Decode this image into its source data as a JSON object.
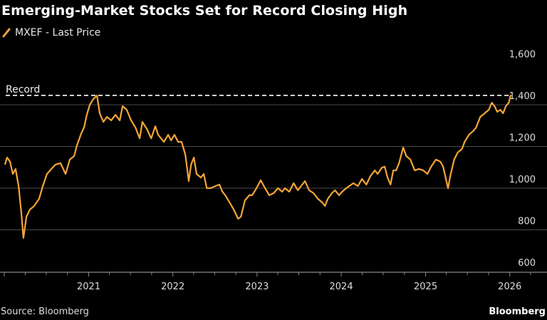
{
  "title": "Emerging-Market Stocks Set for Record Closing High",
  "source": "Source: Bloomberg",
  "brand": "Bloomberg",
  "colors": {
    "series": "#f6a539",
    "background": "#000000",
    "grid": "#4a4a4a",
    "record_line": "#ffffff"
  },
  "chart_data": {
    "type": "line",
    "title": "Emerging-Market Stocks Set for Record Closing High",
    "legend": {
      "placement": "top-left",
      "entries": [
        "MXEF - Last Price"
      ]
    },
    "grid": true,
    "y_axis": {
      "position": "right",
      "ylim": [
        600,
        1600
      ],
      "ticks": [
        600,
        800,
        1000,
        1200,
        1400,
        1600
      ],
      "tick_labels": [
        "600",
        "800",
        "1,000",
        "1,200",
        "1,400",
        "1,600"
      ]
    },
    "x_axis": {
      "xlim": [
        "2020-01-01",
        "2026-01-08"
      ],
      "ticks": [
        "2021-01-01",
        "2022-01-01",
        "2023-01-01",
        "2024-01-01",
        "2025-01-01",
        "2026-01-01"
      ],
      "tick_labels": [
        "2021",
        "2022",
        "2023",
        "2024",
        "2025",
        "2026"
      ]
    },
    "annotations": [
      {
        "type": "hline",
        "label": "Record",
        "value": 1445,
        "style": "dashed"
      }
    ],
    "series": [
      {
        "name": "MXEF - Last Price",
        "points": [
          [
            "2020-01-04",
            1113
          ],
          [
            "2020-01-13",
            1147
          ],
          [
            "2020-01-26",
            1127
          ],
          [
            "2020-02-07",
            1068
          ],
          [
            "2020-02-19",
            1092
          ],
          [
            "2020-03-03",
            1010
          ],
          [
            "2020-03-15",
            880
          ],
          [
            "2020-03-24",
            761
          ],
          [
            "2020-04-06",
            863
          ],
          [
            "2020-04-21",
            897
          ],
          [
            "2020-05-10",
            915
          ],
          [
            "2020-05-31",
            949
          ],
          [
            "2020-06-16",
            1010
          ],
          [
            "2020-07-04",
            1068
          ],
          [
            "2020-07-23",
            1092
          ],
          [
            "2020-08-10",
            1113
          ],
          [
            "2020-09-01",
            1120
          ],
          [
            "2020-09-23",
            1068
          ],
          [
            "2020-10-11",
            1137
          ],
          [
            "2020-10-30",
            1154
          ],
          [
            "2020-11-11",
            1205
          ],
          [
            "2020-11-30",
            1263
          ],
          [
            "2020-12-12",
            1291
          ],
          [
            "2020-12-24",
            1352
          ],
          [
            "2021-01-06",
            1400
          ],
          [
            "2021-01-21",
            1427
          ],
          [
            "2021-02-06",
            1444
          ],
          [
            "2021-02-18",
            1359
          ],
          [
            "2021-03-06",
            1318
          ],
          [
            "2021-03-21",
            1342
          ],
          [
            "2021-04-09",
            1325
          ],
          [
            "2021-04-27",
            1352
          ],
          [
            "2021-05-16",
            1325
          ],
          [
            "2021-05-28",
            1393
          ],
          [
            "2021-06-15",
            1376
          ],
          [
            "2021-07-04",
            1325
          ],
          [
            "2021-07-23",
            1291
          ],
          [
            "2021-08-10",
            1239
          ],
          [
            "2021-08-22",
            1318
          ],
          [
            "2021-09-10",
            1284
          ],
          [
            "2021-09-29",
            1239
          ],
          [
            "2021-10-17",
            1297
          ],
          [
            "2021-10-29",
            1256
          ],
          [
            "2021-11-23",
            1222
          ],
          [
            "2021-12-12",
            1256
          ],
          [
            "2021-12-24",
            1229
          ],
          [
            "2022-01-08",
            1256
          ],
          [
            "2022-01-24",
            1222
          ],
          [
            "2022-02-08",
            1222
          ],
          [
            "2022-02-24",
            1161
          ],
          [
            "2022-03-11",
            1034
          ],
          [
            "2022-03-21",
            1113
          ],
          [
            "2022-04-02",
            1147
          ],
          [
            "2022-04-14",
            1068
          ],
          [
            "2022-05-03",
            1051
          ],
          [
            "2022-05-15",
            1068
          ],
          [
            "2022-05-28",
            1000
          ],
          [
            "2022-06-15",
            1000
          ],
          [
            "2022-07-04",
            1010
          ],
          [
            "2022-07-22",
            1017
          ],
          [
            "2022-08-04",
            983
          ],
          [
            "2022-08-16",
            966
          ],
          [
            "2022-09-04",
            932
          ],
          [
            "2022-09-22",
            897
          ],
          [
            "2022-10-11",
            853
          ],
          [
            "2022-10-23",
            863
          ],
          [
            "2022-11-10",
            942
          ],
          [
            "2022-11-29",
            966
          ],
          [
            "2022-12-11",
            966
          ],
          [
            "2022-12-30",
            1000
          ],
          [
            "2023-01-17",
            1038
          ],
          [
            "2023-02-05",
            1000
          ],
          [
            "2023-02-23",
            966
          ],
          [
            "2023-03-14",
            976
          ],
          [
            "2023-04-02",
            1000
          ],
          [
            "2023-04-20",
            983
          ],
          [
            "2023-05-02",
            1000
          ],
          [
            "2023-05-21",
            983
          ],
          [
            "2023-06-09",
            1024
          ],
          [
            "2023-06-27",
            990
          ],
          [
            "2023-07-16",
            1017
          ],
          [
            "2023-07-28",
            1034
          ],
          [
            "2023-08-15",
            990
          ],
          [
            "2023-09-03",
            976
          ],
          [
            "2023-09-22",
            949
          ],
          [
            "2023-10-10",
            932
          ],
          [
            "2023-10-23",
            915
          ],
          [
            "2023-11-04",
            949
          ],
          [
            "2023-11-22",
            976
          ],
          [
            "2023-12-05",
            990
          ],
          [
            "2023-12-23",
            966
          ],
          [
            "2024-01-05",
            983
          ],
          [
            "2024-01-23",
            1000
          ],
          [
            "2024-02-05",
            1010
          ],
          [
            "2024-02-23",
            1024
          ],
          [
            "2024-03-13",
            1010
          ],
          [
            "2024-03-31",
            1044
          ],
          [
            "2024-04-19",
            1017
          ],
          [
            "2024-05-07",
            1058
          ],
          [
            "2024-05-26",
            1085
          ],
          [
            "2024-06-07",
            1068
          ],
          [
            "2024-06-26",
            1099
          ],
          [
            "2024-07-08",
            1103
          ],
          [
            "2024-07-20",
            1051
          ],
          [
            "2024-08-02",
            1017
          ],
          [
            "2024-08-14",
            1085
          ],
          [
            "2024-08-26",
            1085
          ],
          [
            "2024-09-08",
            1120
          ],
          [
            "2024-09-26",
            1195
          ],
          [
            "2024-10-09",
            1154
          ],
          [
            "2024-10-27",
            1137
          ],
          [
            "2024-11-15",
            1085
          ],
          [
            "2024-12-03",
            1092
          ],
          [
            "2024-12-22",
            1085
          ],
          [
            "2025-01-09",
            1068
          ],
          [
            "2025-01-25",
            1103
          ],
          [
            "2025-02-15",
            1137
          ],
          [
            "2025-03-06",
            1127
          ],
          [
            "2025-03-18",
            1103
          ],
          [
            "2025-04-08",
            1000
          ],
          [
            "2025-04-20",
            1068
          ],
          [
            "2025-05-05",
            1137
          ],
          [
            "2025-05-20",
            1171
          ],
          [
            "2025-06-08",
            1188
          ],
          [
            "2025-06-19",
            1222
          ],
          [
            "2025-07-08",
            1256
          ],
          [
            "2025-07-26",
            1274
          ],
          [
            "2025-08-08",
            1291
          ],
          [
            "2025-08-26",
            1342
          ],
          [
            "2025-09-14",
            1359
          ],
          [
            "2025-10-02",
            1376
          ],
          [
            "2025-10-15",
            1410
          ],
          [
            "2025-10-27",
            1393
          ],
          [
            "2025-11-08",
            1366
          ],
          [
            "2025-11-21",
            1376
          ],
          [
            "2025-12-03",
            1359
          ],
          [
            "2025-12-15",
            1393
          ],
          [
            "2025-12-28",
            1410
          ],
          [
            "2026-01-05",
            1448
          ]
        ]
      }
    ]
  }
}
